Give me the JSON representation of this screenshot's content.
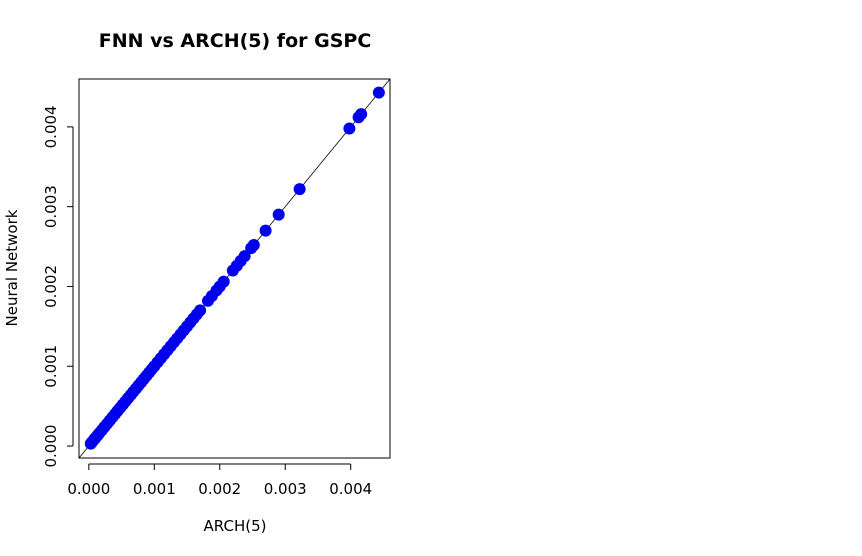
{
  "chart_data": {
    "type": "scatter",
    "title": "FNN vs ARCH(5) for GSPC",
    "xlabel": "ARCH(5)",
    "ylabel": "Neural Network",
    "xlim": [
      -0.00015,
      0.0046
    ],
    "ylim": [
      -0.00015,
      0.0046
    ],
    "x_ticks": [
      "0.000",
      "0.001",
      "0.002",
      "0.003",
      "0.004"
    ],
    "y_ticks": [
      "0.000",
      "0.001",
      "0.002",
      "0.003",
      "0.004"
    ],
    "reference_line": "y = x",
    "point_color": "#0000ee",
    "grid": false,
    "points": [
      [
        3e-05,
        3e-05
      ],
      [
        5e-05,
        5e-05
      ],
      [
        8e-05,
        8e-05
      ],
      [
        0.0001,
        0.0001
      ],
      [
        0.00013,
        0.00013
      ],
      [
        0.00016,
        0.00016
      ],
      [
        0.0002,
        0.0002
      ],
      [
        0.00024,
        0.00024
      ],
      [
        0.00028,
        0.00028
      ],
      [
        0.00032,
        0.00032
      ],
      [
        0.00036,
        0.00036
      ],
      [
        0.0004,
        0.0004
      ],
      [
        0.00044,
        0.00044
      ],
      [
        0.00048,
        0.00048
      ],
      [
        0.00052,
        0.00052
      ],
      [
        0.00056,
        0.00056
      ],
      [
        0.0006,
        0.0006
      ],
      [
        0.00064,
        0.00064
      ],
      [
        0.00068,
        0.00068
      ],
      [
        0.00072,
        0.00072
      ],
      [
        0.00076,
        0.00076
      ],
      [
        0.0008,
        0.0008
      ],
      [
        0.00084,
        0.00084
      ],
      [
        0.00088,
        0.00088
      ],
      [
        0.00092,
        0.00092
      ],
      [
        0.00096,
        0.00096
      ],
      [
        0.001,
        0.001
      ],
      [
        0.00105,
        0.00105
      ],
      [
        0.0011,
        0.0011
      ],
      [
        0.00115,
        0.00115
      ],
      [
        0.0012,
        0.0012
      ],
      [
        0.00125,
        0.00125
      ],
      [
        0.0013,
        0.0013
      ],
      [
        0.00135,
        0.00135
      ],
      [
        0.0014,
        0.0014
      ],
      [
        0.00145,
        0.00145
      ],
      [
        0.0015,
        0.0015
      ],
      [
        0.00155,
        0.00155
      ],
      [
        0.0016,
        0.0016
      ],
      [
        0.00165,
        0.00165
      ],
      [
        0.0017,
        0.0017
      ],
      [
        0.00182,
        0.00182
      ],
      [
        0.00188,
        0.00188
      ],
      [
        0.00195,
        0.00195
      ],
      [
        0.002,
        0.002
      ],
      [
        0.00206,
        0.00206
      ],
      [
        0.0022,
        0.0022
      ],
      [
        0.00226,
        0.00226
      ],
      [
        0.00232,
        0.00232
      ],
      [
        0.00238,
        0.00238
      ],
      [
        0.00248,
        0.00248
      ],
      [
        0.00252,
        0.00252
      ],
      [
        0.0027,
        0.0027
      ],
      [
        0.0029,
        0.0029
      ],
      [
        0.00322,
        0.00322
      ],
      [
        0.00398,
        0.00398
      ],
      [
        0.00412,
        0.00412
      ],
      [
        0.00416,
        0.00416
      ],
      [
        0.00443,
        0.00443
      ]
    ]
  }
}
